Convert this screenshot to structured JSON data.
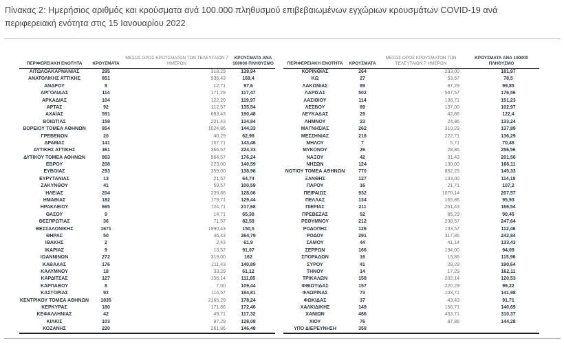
{
  "title": "Πίνακας 2:  Ημερήσιος αριθμός και κρούσματα ανά 100.000 πληθυσμού επιβεβαιωμένων εγχώριων κρουσμάτων COVID-19 ανά περιφερειακή ενότητα στις 15 Ιανουαρίου 2022",
  "table": {
    "headers": {
      "region": "ΠΕΡΙΦΕΡΕΙΑΚΗ ΕΝΟΤΗΤΑ",
      "cases": "ΚΡΟΥΣΜΑΤΑ",
      "avg7": "ΜΕΣΟΣ ΟΡΟΣ ΚΡΟΥΣΜΑΤΩΝ ΤΩΝ ΤΕΛΕΥΤΑΙΩΝ 7 ΗΜΕΡΩΝ",
      "per100k": "ΚΡΟΥΣΜΑΤΑ ΑΝΑ 100000 ΠΛΗΘΥΣΜΟ"
    },
    "left_rows": [
      [
        "ΑΙΤΩΛΟΑΚΑΡΝΑΝΙΑΣ",
        "295",
        "318,29",
        "139,94"
      ],
      [
        "ΑΝΑΤΟΛΙΚΗΣ ΑΤΤΙΚΗΣ",
        "851",
        "936,43",
        "169,4"
      ],
      [
        "ΑΝΔΡΟΥ",
        "9",
        "12,71",
        "97,6"
      ],
      [
        "ΑΡΓΟΛΙΔΑΣ",
        "114",
        "171,29",
        "117,47"
      ],
      [
        "ΑΡΚΑΔΙΑΣ",
        "104",
        "122,29",
        "119,97"
      ],
      [
        "ΑΡΤΑΣ",
        "92",
        "112,57",
        "135,54"
      ],
      [
        "ΑΧΑΪΑΣ",
        "591",
        "683,43",
        "190,48"
      ],
      [
        "ΒΟΙΩΤΙΑΣ",
        "159",
        "201,43",
        "134,84"
      ],
      [
        "ΒΟΡΕΙΟΥ ΤΟΜΕΑ ΑΘΗΝΩΝ",
        "854",
        "1024,86",
        "144,33"
      ],
      [
        "ΓΡΕΒΕΝΩΝ",
        "20",
        "40,29",
        "62,98"
      ],
      [
        "ΔΡΑΜΑΣ",
        "141",
        "167,71",
        "143,46"
      ],
      [
        "ΔΥΤΙΚΗΣ ΑΤΤΙΚΗΣ",
        "361",
        "366,57",
        "224,33"
      ],
      [
        "ΔΥΤΙΚΟΥ ΤΟΜΕΑ ΑΘΗΝΩΝ",
        "863",
        "964,57",
        "176,24"
      ],
      [
        "ΕΒΡΟΥ",
        "208",
        "223,00",
        "140,59"
      ],
      [
        "ΕΥΒΟΙΑΣ",
        "293",
        "359,00",
        "138,98"
      ],
      [
        "ΕΥΡΥΤΑΝΙΑΣ",
        "13",
        "21,57",
        "64,74"
      ],
      [
        "ΖΑΚΥΝΘΟΥ",
        "41",
        "59,57",
        "100,59"
      ],
      [
        "ΗΛΕΙΑΣ",
        "204",
        "239,86",
        "128,06"
      ],
      [
        "ΗΜΑΘΙΑΣ",
        "182",
        "179,71",
        "129,44"
      ],
      [
        "ΗΡΑΚΛΕΙΟΥ",
        "665",
        "724,71",
        "217,68"
      ],
      [
        "ΘΑΣΟΥ",
        "9",
        "14,71",
        "65,38"
      ],
      [
        "ΘΕΣΠΡΩΤΙΑΣ",
        "36",
        "71,57",
        "82,59"
      ],
      [
        "ΘΕΣΣΑΛΟΝΙΚΗΣ",
        "1671",
        "1990,43",
        "150,5"
      ],
      [
        "ΘΗΡΑΣ",
        "50",
        "46,43",
        "264,79"
      ],
      [
        "ΙΘΑΚΗΣ",
        "2",
        "2,43",
        "61,9"
      ],
      [
        "ΙΚΑΡΙΑΣ",
        "9",
        "13,57",
        "91,07"
      ],
      [
        "ΙΩΑΝΝΙΝΩΝ",
        "272",
        "319,00",
        "162"
      ],
      [
        "ΚΑΒΑΛΑΣ",
        "176",
        "211,43",
        "140,89"
      ],
      [
        "ΚΑΛΥΜΝΟΥ",
        "18",
        "33,29",
        "61,12"
      ],
      [
        "ΚΑΡΔΙΤΣΑΣ",
        "127",
        "156,14",
        "111,85"
      ],
      [
        "ΚΑΡΠΑΘΟΥ",
        "8",
        "7,00",
        "109,44"
      ],
      [
        "ΚΑΣΤΟΡΙΑΣ",
        "93",
        "114,57",
        "184,81"
      ],
      [
        "ΚΕΝΤΡΙΚΟΥ ΤΟΜΕΑ ΑΘΗΝΩΝ",
        "1835",
        "2165,29",
        "178,24"
      ],
      [
        "ΚΕΡΚΥΡΑΣ",
        "180",
        "171,86",
        "172,46"
      ],
      [
        "ΚΕΦΑΛΛΗΝΙΑΣ",
        "42",
        "49,71",
        "117,32"
      ],
      [
        "ΚΙΛΚΙΣ",
        "103",
        "97,29",
        "128,08"
      ],
      [
        "ΚΟΖΑΝΗΣ",
        "220",
        "261,86",
        "146,48"
      ]
    ],
    "right_rows": [
      [
        "ΚΟΡΙΝΘΙΑΣ",
        "264",
        "293,00",
        "181,97"
      ],
      [
        "ΚΩ",
        "27",
        "53,57",
        "78,5"
      ],
      [
        "ΛΑΚΩΝΙΑΣ",
        "89",
        "87,29",
        "99,85"
      ],
      [
        "ΛΑΡΙΣΑΣ",
        "502",
        "567,57",
        "176,56"
      ],
      [
        "ΛΑΣΙΘΙΟΥ",
        "114",
        "136,71",
        "151,23"
      ],
      [
        "ΛΕΣΒΟΥ",
        "89",
        "137,00",
        "102,97"
      ],
      [
        "ΛΕΥΚΑΔΑΣ",
        "29",
        "42,86",
        "122,4"
      ],
      [
        "ΛΗΜΝΟΥ",
        "23",
        "24,86",
        "133,24"
      ],
      [
        "ΜΑΓΝΗΣΙΑΣ",
        "262",
        "310,29",
        "137,89"
      ],
      [
        "ΜΕΣΣΗΝΙΑΣ",
        "218",
        "222,71",
        "136,29"
      ],
      [
        "ΜΗΛΟΥ",
        "7",
        "5,71",
        "70,48"
      ],
      [
        "ΜΥΚΟΝΟΥ",
        "26",
        "28,86",
        "256,56"
      ],
      [
        "ΝΑΞΟΥ",
        "42",
        "31,43",
        "201,56"
      ],
      [
        "ΝΗΣΩΝ",
        "124",
        "130,00",
        "166,11"
      ],
      [
        "ΝΟΤΙΟΥ ΤΟΜΕΑ ΑΘΗΝΩΝ",
        "770",
        "862,29",
        "145,33"
      ],
      [
        "ΞΑΝΘΗΣ",
        "127",
        "133,00",
        "114,19"
      ],
      [
        "ΠΑΡΟΥ",
        "16",
        "21,71",
        "107,2"
      ],
      [
        "ΠΕΙΡΑΙΩΣ",
        "932",
        "1076,14",
        "207,57"
      ],
      [
        "ΠΕΛΛΑΣ",
        "134",
        "165,86",
        "95,93"
      ],
      [
        "ΠΙΕΡΙΑΣ",
        "211",
        "261,43",
        "166,54"
      ],
      [
        "ΠΡΕΒΕΖΑΣ",
        "52",
        "85,29",
        "90,45"
      ],
      [
        "ΡΕΘΥΜΝΟΥ",
        "212",
        "238,57",
        "247,64"
      ],
      [
        "ΡΟΔΟΠΗΣ",
        "126",
        "133,57",
        "112,46"
      ],
      [
        "ΡΟΔΟΥ",
        "291",
        "317,86",
        "242,84"
      ],
      [
        "ΣΑΜΟΥ",
        "44",
        "41,14",
        "133,43"
      ],
      [
        "ΣΕΡΡΩΝ",
        "166",
        "194,00",
        "94,09"
      ],
      [
        "ΣΠΟΡΑΔΩΝ",
        "16",
        "15,86",
        "115,96"
      ],
      [
        "ΣΥΡΟΥ",
        "41",
        "29,29",
        "190,64"
      ],
      [
        "ΤΗΝΟΥ",
        "14",
        "17,29",
        "162,11"
      ],
      [
        "ΤΡΙΚΑΛΩΝ",
        "158",
        "202,14",
        "120,53"
      ],
      [
        "ΦΘΙΩΤΙΔΑΣ",
        "157",
        "220,29",
        "99,22"
      ],
      [
        "ΦΛΩΡΙΝΑΣ",
        "73",
        "103,71",
        "141,98"
      ],
      [
        "ΦΩΚΙΔΑΣ",
        "37",
        "43,43",
        "91,71"
      ],
      [
        "ΧΑΛΚΙΔΙΚΗΣ",
        "149",
        "156,71",
        "140,69"
      ],
      [
        "ΧΑΝΙΩΝ",
        "486",
        "453,71",
        "310,37"
      ],
      [
        "ΧΙΟΥ",
        "76",
        "87,86",
        "144,28"
      ],
      [
        "ΥΠΟ ΔΙΕΡΕΥΝΗΣΗ",
        "358",
        "",
        ""
      ]
    ]
  }
}
